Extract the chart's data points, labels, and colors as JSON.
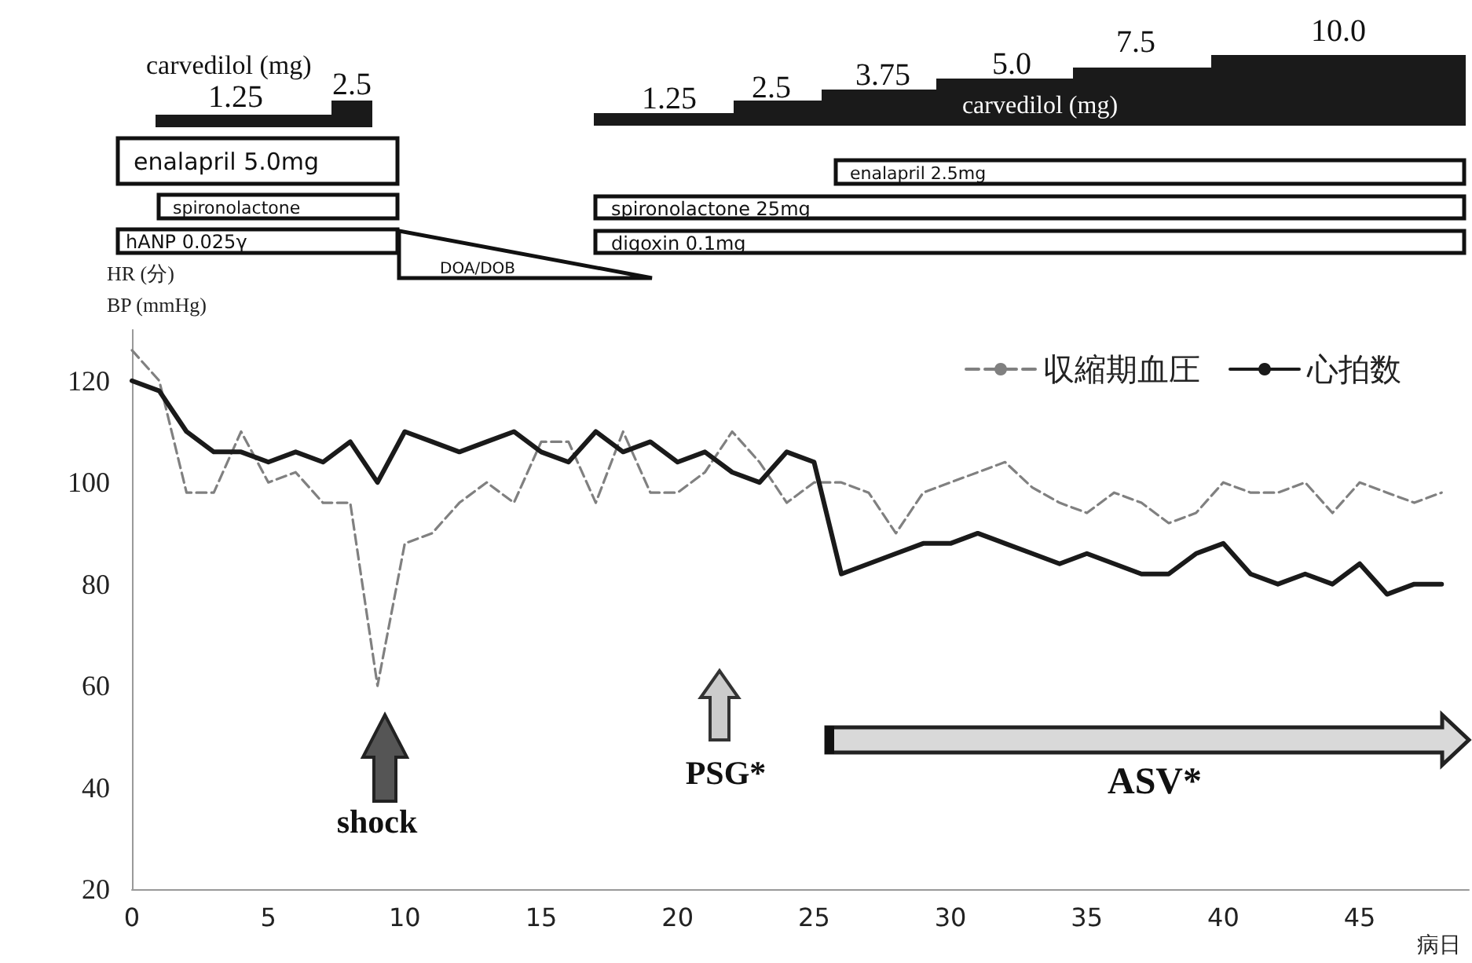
{
  "chart_data": {
    "type": "line",
    "xlabel": "病日",
    "ylabel": "HR (分)\nBP (mmHg)",
    "x": [
      0,
      1,
      2,
      3,
      4,
      5,
      6,
      7,
      8,
      9,
      10,
      11,
      12,
      13,
      14,
      15,
      16,
      17,
      18,
      19,
      20,
      21,
      22,
      23,
      24,
      25,
      26,
      27,
      28,
      29,
      30,
      31,
      32,
      33,
      34,
      35,
      36,
      37,
      38,
      39,
      40,
      41,
      42,
      43,
      44,
      45,
      46,
      47,
      48
    ],
    "series": [
      {
        "name": "収縮期血圧",
        "color": "#808080",
        "line_style": "dashed",
        "values": [
          126,
          120,
          98,
          98,
          110,
          100,
          102,
          96,
          96,
          60,
          88,
          90,
          96,
          100,
          96,
          108,
          108,
          96,
          110,
          98,
          98,
          102,
          110,
          104,
          96,
          100,
          100,
          98,
          90,
          98,
          100,
          102,
          104,
          99,
          96,
          94,
          98,
          96,
          92,
          94,
          100,
          98,
          98,
          100,
          94,
          100,
          98,
          96,
          98
        ]
      },
      {
        "name": "心拍数",
        "color": "#1a1a1a",
        "line_style": "solid",
        "values": [
          120,
          118,
          110,
          106,
          106,
          104,
          106,
          104,
          108,
          100,
          110,
          108,
          106,
          108,
          110,
          106,
          104,
          110,
          106,
          108,
          104,
          106,
          102,
          100,
          106,
          104,
          82,
          84,
          86,
          88,
          88,
          90,
          88,
          86,
          84,
          86,
          84,
          82,
          82,
          86,
          88,
          82,
          80,
          82,
          80,
          84,
          78,
          80,
          80
        ]
      }
    ],
    "xlim": [
      0,
      49
    ],
    "xticks": [
      0,
      5,
      10,
      15,
      20,
      25,
      30,
      35,
      40,
      45
    ],
    "ylim": [
      20,
      130
    ],
    "yticks": [
      20,
      40,
      60,
      80,
      100,
      120
    ],
    "grid": false,
    "legend": "top right",
    "marker": "none",
    "annotations": [
      "carvedilol (mg)",
      "1.25",
      "2.5",
      "enalapril 5.0mg",
      "spironolactone",
      "hANP 0.025γ",
      "DOA/DOB",
      "1.25",
      "2.5",
      "3.75",
      "5.0",
      "7.5",
      "10.0",
      "carvedilol (mg)",
      "enalapril 2.5mg",
      "spironolactone 25mg",
      "digoxin 0.1mg",
      "shock",
      "PSG*",
      "ASV*"
    ]
  }
}
